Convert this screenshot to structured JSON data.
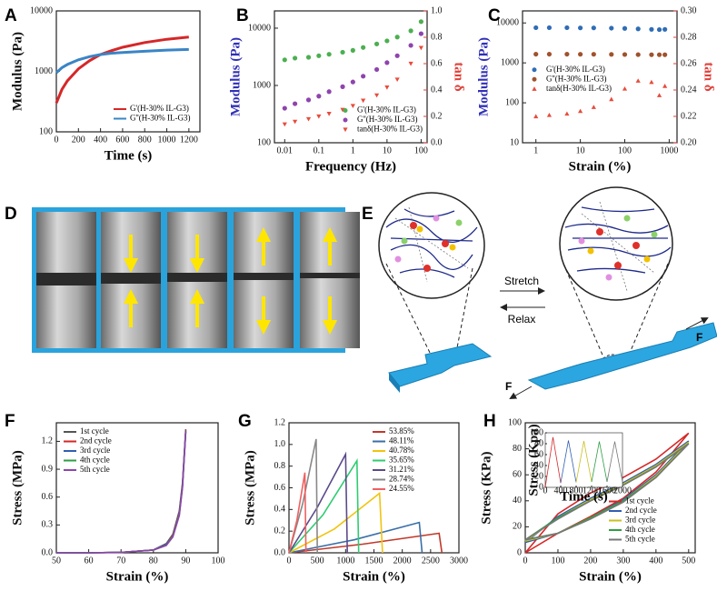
{
  "chart_data": [
    {
      "label": "A",
      "type": "line",
      "xlabel": "Time (s)",
      "ylabel": "Modulus (Pa)",
      "logy": true,
      "xlim": [
        0,
        1300
      ],
      "ylim": [
        100,
        10000
      ],
      "xticks": [
        0,
        200,
        400,
        600,
        800,
        1000,
        1200
      ],
      "yticks": [
        100,
        1000,
        10000
      ],
      "x": [
        0,
        50,
        100,
        200,
        300,
        400,
        500,
        600,
        800,
        1000,
        1200
      ],
      "series": [
        {
          "name": "G'(H-30% IL-G3)",
          "color": "#d62728",
          "values": [
            300,
            500,
            700,
            1100,
            1500,
            1900,
            2200,
            2500,
            3000,
            3400,
            3700
          ]
        },
        {
          "name": "G''(H-30% IL-G3)",
          "color": "#3a85c6",
          "values": [
            950,
            1150,
            1300,
            1550,
            1750,
            1900,
            2000,
            2050,
            2150,
            2250,
            2300
          ]
        }
      ],
      "legend": "lower right"
    },
    {
      "label": "B",
      "type": "scatter",
      "xlabel": "Frequency (Hz)",
      "ylabel": "Modulus (Pa)",
      "y2label": "tan δ",
      "ylabel_color": "#3030b8",
      "y2label_color": "#e0403a",
      "logx": true,
      "logy": true,
      "xlim": [
        0.005,
        150
      ],
      "ylim": [
        100,
        20000
      ],
      "y2lim": [
        0,
        1
      ],
      "xticks": [
        0.01,
        0.1,
        1,
        10,
        100
      ],
      "yticks": [
        100,
        1000,
        10000
      ],
      "y2ticks": [
        {
          "value": 0,
          "label": "0.0"
        },
        0.2,
        0.4,
        0.6,
        0.8,
        {
          "value": 1,
          "label": "1.0"
        }
      ],
      "x": [
        0.01,
        0.02,
        0.05,
        0.1,
        0.2,
        0.5,
        1,
        2,
        5,
        10,
        20,
        50,
        100
      ],
      "series": [
        {
          "name": "G'(H-30% IL-G3)",
          "color": "#4caf50",
          "marker": "circle",
          "values": [
            2800,
            3000,
            3100,
            3300,
            3500,
            3800,
            4100,
            4600,
            5300,
            6000,
            7000,
            9000,
            13000
          ]
        },
        {
          "name": "G''(H-30% IL-G3)",
          "color": "#8e44ad",
          "marker": "circle",
          "values": [
            400,
            480,
            560,
            650,
            780,
            950,
            1150,
            1450,
            1900,
            2500,
            3300,
            5000,
            8000
          ]
        },
        {
          "name": "tanδ(H-30% IL-G3)",
          "color": "#e74c3c",
          "marker": "triangle-down",
          "axis": "y2",
          "values": [
            0.14,
            0.16,
            0.18,
            0.2,
            0.22,
            0.25,
            0.28,
            0.32,
            0.36,
            0.42,
            0.48,
            0.6,
            0.72
          ]
        }
      ],
      "legend": "lower right"
    },
    {
      "label": "C",
      "type": "scatter",
      "xlabel": "Strain (%)",
      "ylabel": "Modulus (Pa)",
      "y2label": "tan δ",
      "ylabel_color": "#3030b8",
      "y2label_color": "#e0403a",
      "logx": true,
      "logy": true,
      "xlim": [
        0.5,
        1500
      ],
      "ylim": [
        10,
        20000
      ],
      "y2lim": [
        0.2,
        0.3
      ],
      "xticks": [
        1,
        10,
        100,
        1000
      ],
      "yticks": [
        10,
        100,
        1000,
        10000
      ],
      "y2ticks": [
        {
          "value": 0.2,
          "label": "0.20"
        },
        0.22,
        0.24,
        0.26,
        0.28,
        {
          "value": 0.3,
          "label": "0.30"
        }
      ],
      "x": [
        1,
        2,
        5,
        10,
        20,
        50,
        100,
        200,
        400,
        600,
        800
      ],
      "series": [
        {
          "name": "G'(H-30% IL-G3)",
          "color": "#2f6db5",
          "marker": "circle",
          "values": [
            7600,
            7600,
            7600,
            7500,
            7500,
            7400,
            7300,
            7100,
            6900,
            6800,
            6900
          ]
        },
        {
          "name": "G''(H-30% IL-G3)",
          "color": "#a0522d",
          "marker": "circle",
          "values": [
            1650,
            1650,
            1650,
            1640,
            1640,
            1630,
            1620,
            1610,
            1600,
            1600,
            1600
          ]
        },
        {
          "name": "tanδ(H-30% IL-G3)",
          "color": "#e74c3c",
          "marker": "triangle",
          "axis": "y2",
          "values": [
            0.22,
            0.221,
            0.222,
            0.224,
            0.227,
            0.233,
            0.241,
            0.247,
            0.246,
            0.236,
            0.243
          ]
        }
      ],
      "legend": "center left"
    },
    {
      "label": "F",
      "type": "line",
      "xlabel": "Strain (%)",
      "ylabel": "Stress (MPa)",
      "xlim": [
        50,
        100
      ],
      "ylim": [
        0,
        1.4
      ],
      "xticks": [
        50,
        60,
        70,
        80,
        90,
        100
      ],
      "yticks": [
        {
          "value": 0,
          "label": "0.0"
        },
        0.3,
        0.6,
        0.9,
        1.2
      ],
      "x": [
        50,
        60,
        70,
        80,
        84,
        86,
        88,
        89,
        90
      ],
      "series": [
        {
          "name": "1st cycle",
          "color": "#555555",
          "values": [
            0,
            0,
            0.005,
            0.03,
            0.1,
            0.2,
            0.45,
            0.75,
            1.33
          ]
        },
        {
          "name": "2nd cycle",
          "color": "#d62728",
          "values": [
            0,
            0,
            0.005,
            0.03,
            0.09,
            0.19,
            0.43,
            0.73,
            1.32
          ]
        },
        {
          "name": "3rd cycle",
          "color": "#2f5fb3",
          "values": [
            0,
            0,
            0.005,
            0.03,
            0.09,
            0.18,
            0.42,
            0.72,
            1.31
          ]
        },
        {
          "name": "4th cycle",
          "color": "#2e9e44",
          "values": [
            0,
            0,
            0.005,
            0.03,
            0.08,
            0.18,
            0.41,
            0.71,
            1.3
          ]
        },
        {
          "name": "5th cycle",
          "color": "#8e44ad",
          "values": [
            0,
            0,
            0.005,
            0.03,
            0.08,
            0.17,
            0.4,
            0.7,
            1.3
          ]
        }
      ],
      "legend": "upper left"
    },
    {
      "label": "G",
      "type": "line",
      "xlabel": "Strain (%)",
      "ylabel": "Stress (MPa)",
      "xlim": [
        0,
        3000
      ],
      "ylim": [
        0,
        1.2
      ],
      "xticks": [
        0,
        500,
        1000,
        1500,
        2000,
        2500,
        3000
      ],
      "yticks": [
        {
          "value": 0,
          "label": "0.0"
        },
        0.2,
        0.4,
        0.6,
        0.8,
        {
          "value": 1,
          "label": "1.0"
        },
        1.2
      ],
      "series": [
        {
          "name": "53.85%",
          "color": "#c0392b",
          "x": [
            0,
            1300,
            2650,
            2700
          ],
          "values": [
            0,
            0.08,
            0.18,
            0
          ]
        },
        {
          "name": "48.11%",
          "color": "#3b6fa8",
          "x": [
            0,
            1150,
            2300,
            2350
          ],
          "values": [
            0,
            0.12,
            0.28,
            0
          ]
        },
        {
          "name": "40.78%",
          "color": "#f1c40f",
          "x": [
            0,
            800,
            1600,
            1650
          ],
          "values": [
            0,
            0.22,
            0.55,
            0
          ]
        },
        {
          "name": "35.65%",
          "color": "#2ecc71",
          "x": [
            0,
            600,
            1200,
            1230
          ],
          "values": [
            0,
            0.35,
            0.85,
            0
          ]
        },
        {
          "name": "31.21%",
          "color": "#5b4a8a",
          "x": [
            0,
            500,
            1000,
            1030
          ],
          "values": [
            0,
            0.42,
            0.91,
            0
          ]
        },
        {
          "name": "28.74%",
          "color": "#888888",
          "x": [
            0,
            240,
            480,
            500
          ],
          "values": [
            0,
            0.45,
            1.05,
            0
          ]
        },
        {
          "name": "24.55%",
          "color": "#f06060",
          "x": [
            0,
            140,
            280,
            300
          ],
          "values": [
            0,
            0.3,
            0.74,
            0
          ]
        }
      ],
      "legend": "upper right"
    },
    {
      "label": "H",
      "type": "line",
      "xlabel": "Strain (%)",
      "ylabel": "Stress (KPa)",
      "xlim": [
        0,
        520
      ],
      "ylim": [
        0,
        100
      ],
      "xticks": [
        0,
        100,
        200,
        300,
        400,
        500
      ],
      "yticks": [
        0,
        20,
        40,
        60,
        80,
        100
      ],
      "series": [
        {
          "name": "1st cycle",
          "color": "#d62728",
          "x": [
            0,
            100,
            200,
            300,
            400,
            500,
            400,
            300,
            200,
            100,
            0
          ],
          "values": [
            0,
            30,
            46,
            58,
            72,
            92,
            62,
            42,
            28,
            15,
            0
          ]
        },
        {
          "name": "2nd cycle",
          "color": "#2f5fb3",
          "x": [
            0,
            100,
            200,
            300,
            400,
            500,
            400,
            300,
            200,
            100,
            0
          ],
          "values": [
            8,
            28,
            42,
            54,
            68,
            86,
            60,
            41,
            27,
            15,
            8
          ]
        },
        {
          "name": "3rd cycle",
          "color": "#c8c020",
          "x": [
            0,
            100,
            200,
            300,
            400,
            500,
            400,
            300,
            200,
            100,
            0
          ],
          "values": [
            9,
            27,
            41,
            53,
            67,
            85,
            59,
            40,
            27,
            15,
            9
          ]
        },
        {
          "name": "4th cycle",
          "color": "#2e9e44",
          "x": [
            0,
            100,
            200,
            300,
            400,
            500,
            400,
            300,
            200,
            100,
            0
          ],
          "values": [
            10,
            27,
            40,
            52,
            66,
            84,
            58,
            40,
            27,
            15,
            10
          ]
        },
        {
          "name": "5th cycle",
          "color": "#777777",
          "x": [
            0,
            100,
            200,
            300,
            400,
            500,
            400,
            300,
            200,
            100,
            0
          ],
          "values": [
            10,
            26,
            40,
            52,
            66,
            84,
            58,
            39,
            26,
            15,
            10
          ]
        }
      ],
      "legend": "lower right"
    },
    {
      "type": "line",
      "xlabel": "Time (s)",
      "ylabel": "Stress (Kpa)",
      "xlim": [
        0,
        2000
      ],
      "ylim": [
        0,
        100
      ],
      "xticks": [
        0,
        400,
        800,
        1200,
        1600,
        2000
      ],
      "yticks": [
        0,
        20,
        40,
        60,
        80,
        100
      ],
      "series": [
        {
          "color": "#d62728",
          "x": [
            0,
            200,
            400
          ],
          "values": [
            0,
            92,
            8
          ]
        },
        {
          "color": "#2f5fb3",
          "x": [
            400,
            600,
            800
          ],
          "values": [
            8,
            86,
            9
          ]
        },
        {
          "color": "#c8c020",
          "x": [
            800,
            1000,
            1200
          ],
          "values": [
            9,
            85,
            10
          ]
        },
        {
          "color": "#2e9e44",
          "x": [
            1200,
            1400,
            1600
          ],
          "values": [
            10,
            84,
            10
          ]
        },
        {
          "color": "#777777",
          "x": [
            1600,
            1800,
            2000
          ],
          "values": [
            10,
            84,
            10
          ]
        }
      ]
    }
  ],
  "diagram_d": {
    "label": "D"
  },
  "diagram_e": {
    "label": "E",
    "top_arrow": "Stretch",
    "bottom_arrow": "Relax",
    "force_labels": [
      "F",
      "F"
    ]
  }
}
